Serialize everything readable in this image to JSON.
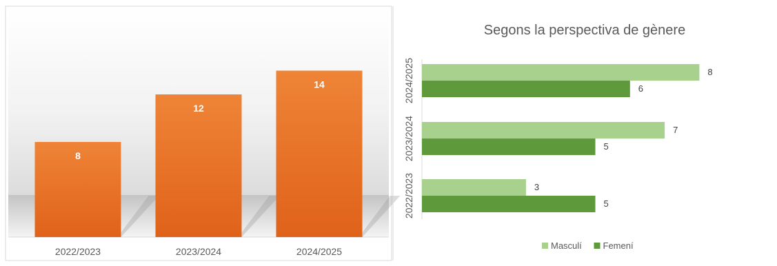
{
  "chart_data": [
    {
      "type": "bar",
      "orientation": "vertical",
      "title": "",
      "categories": [
        "2022/2023",
        "2023/2024",
        "2024/2025"
      ],
      "values": [
        8,
        12,
        14
      ],
      "ylim": [
        0,
        16
      ],
      "grid": false,
      "bar_color": "#e66c1f",
      "label_color": "#ffffff"
    },
    {
      "type": "bar",
      "orientation": "horizontal",
      "title": "Segons la perspectiva de gènere",
      "categories": [
        "2022/2023",
        "2023/2024",
        "2024/2025"
      ],
      "series": [
        {
          "name": "Masculí",
          "values": [
            3,
            7,
            8
          ],
          "color": "#a9d18e"
        },
        {
          "name": "Femení",
          "values": [
            5,
            5,
            6
          ],
          "color": "#5e9a3c"
        }
      ],
      "xlim": [
        0,
        8
      ],
      "grid": false,
      "legend_position": "bottom"
    }
  ]
}
